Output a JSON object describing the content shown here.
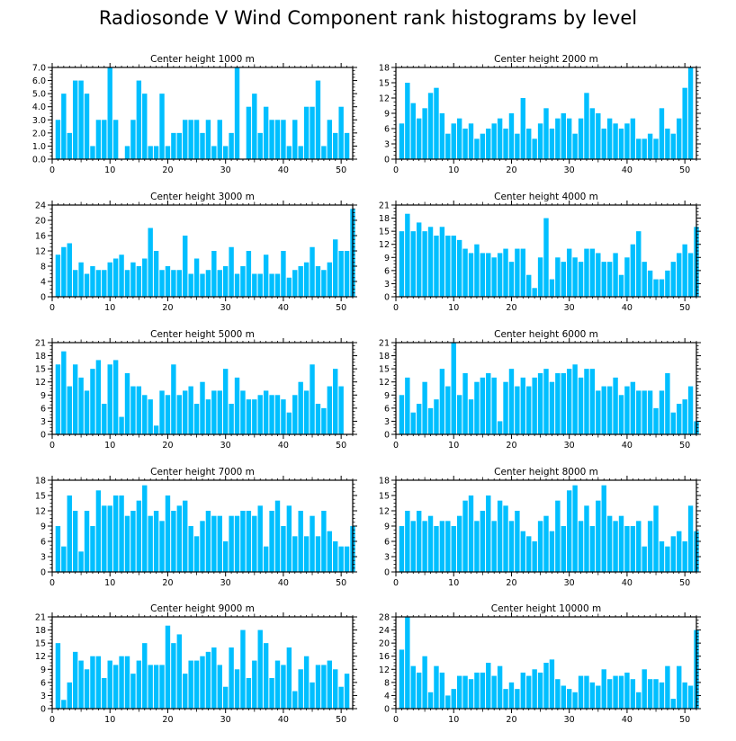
{
  "title": "Radiosonde V Wind Component rank histograms by level",
  "colors": {
    "bar": "#00bfff",
    "axis": "#000000"
  },
  "chart_data": [
    {
      "type": "bar",
      "title": "Center height 1000 m",
      "ylim": [
        0,
        7
      ],
      "yticks": [
        "0.0",
        "1.0",
        "2.0",
        "3.0",
        "4.0",
        "5.0",
        "6.0",
        "7.0"
      ],
      "xlim": [
        0,
        52
      ],
      "xticks": [
        0,
        10,
        20,
        30,
        40,
        50
      ],
      "values": [
        3,
        5,
        2,
        6,
        6,
        5,
        1,
        3,
        3,
        7,
        3,
        0,
        1,
        3,
        6,
        5,
        1,
        1,
        5,
        1,
        2,
        2,
        3,
        3,
        3,
        2,
        3,
        1,
        3,
        1,
        2,
        7,
        0,
        4,
        5,
        2,
        4,
        3,
        3,
        3,
        1,
        3,
        1,
        4,
        4,
        6,
        1,
        3,
        2,
        4,
        2
      ]
    },
    {
      "type": "bar",
      "title": "Center height 2000 m",
      "ylim": [
        0,
        18
      ],
      "yticks": [
        "0",
        "3",
        "6",
        "9",
        "12",
        "15",
        "18"
      ],
      "xlim": [
        0,
        52
      ],
      "xticks": [
        0,
        10,
        20,
        30,
        40,
        50
      ],
      "values": [
        7,
        15,
        11,
        8,
        10,
        13,
        14,
        9,
        5,
        7,
        8,
        6,
        7,
        4,
        5,
        6,
        7,
        8,
        6,
        9,
        5,
        12,
        6,
        4,
        7,
        10,
        6,
        8,
        9,
        8,
        5,
        8,
        13,
        10,
        9,
        6,
        8,
        7,
        6,
        7,
        8,
        4,
        4,
        5,
        4,
        10,
        6,
        5,
        8,
        14,
        18
      ]
    },
    {
      "type": "bar",
      "title": "Center height 3000 m",
      "ylim": [
        0,
        24
      ],
      "yticks": [
        "0",
        "4",
        "8",
        "12",
        "16",
        "20",
        "24"
      ],
      "xlim": [
        0,
        52
      ],
      "xticks": [
        0,
        10,
        20,
        30,
        40,
        50
      ],
      "values": [
        11,
        13,
        14,
        7,
        9,
        6,
        8,
        7,
        7,
        9,
        10,
        11,
        7,
        9,
        8,
        10,
        18,
        12,
        7,
        8,
        7,
        7,
        16,
        6,
        10,
        6,
        7,
        12,
        7,
        8,
        13,
        6,
        8,
        12,
        6,
        6,
        11,
        6,
        6,
        12,
        5,
        7,
        8,
        9,
        13,
        8,
        7,
        9,
        15,
        12,
        12,
        23
      ]
    },
    {
      "type": "bar",
      "title": "Center height 4000 m",
      "ylim": [
        0,
        21
      ],
      "yticks": [
        "0",
        "3",
        "6",
        "9",
        "12",
        "15",
        "18",
        "21"
      ],
      "xlim": [
        0,
        52
      ],
      "xticks": [
        0,
        10,
        20,
        30,
        40,
        50
      ],
      "values": [
        15,
        19,
        15,
        17,
        15,
        16,
        14,
        16,
        14,
        14,
        13,
        11,
        10,
        12,
        10,
        10,
        9,
        10,
        11,
        8,
        11,
        11,
        5,
        2,
        9,
        18,
        4,
        9,
        8,
        11,
        9,
        8,
        11,
        11,
        10,
        8,
        8,
        10,
        5,
        9,
        12,
        15,
        8,
        6,
        4,
        4,
        6,
        8,
        10,
        12,
        10,
        16
      ]
    },
    {
      "type": "bar",
      "title": "Center height 5000 m",
      "ylim": [
        0,
        21
      ],
      "yticks": [
        "0",
        "3",
        "6",
        "9",
        "12",
        "15",
        "18",
        "21"
      ],
      "xlim": [
        0,
        52
      ],
      "xticks": [
        0,
        10,
        20,
        30,
        40,
        50
      ],
      "values": [
        16,
        19,
        11,
        16,
        13,
        10,
        15,
        17,
        7,
        16,
        17,
        4,
        14,
        11,
        11,
        9,
        8,
        2,
        10,
        9,
        16,
        9,
        10,
        11,
        7,
        12,
        8,
        10,
        10,
        15,
        7,
        13,
        10,
        8,
        8,
        9,
        10,
        9,
        9,
        8,
        5,
        9,
        12,
        10,
        16,
        7,
        6,
        11,
        15,
        11
      ]
    },
    {
      "type": "bar",
      "title": "Center height 6000 m",
      "ylim": [
        0,
        21
      ],
      "yticks": [
        "0",
        "3",
        "6",
        "9",
        "12",
        "15",
        "18",
        "21"
      ],
      "xlim": [
        0,
        52
      ],
      "xticks": [
        0,
        10,
        20,
        30,
        40,
        50
      ],
      "values": [
        9,
        13,
        5,
        7,
        12,
        6,
        8,
        15,
        11,
        21,
        9,
        14,
        8,
        12,
        13,
        14,
        13,
        3,
        12,
        15,
        11,
        13,
        11,
        13,
        14,
        15,
        12,
        14,
        14,
        15,
        16,
        13,
        15,
        15,
        10,
        11,
        11,
        13,
        9,
        11,
        12,
        10,
        10,
        10,
        6,
        10,
        14,
        5,
        7,
        8,
        11,
        3
      ]
    },
    {
      "type": "bar",
      "title": "Center height 7000 m",
      "ylim": [
        0,
        18
      ],
      "yticks": [
        "0",
        "3",
        "6",
        "9",
        "12",
        "15",
        "18"
      ],
      "xlim": [
        0,
        52
      ],
      "xticks": [
        0,
        10,
        20,
        30,
        40,
        50
      ],
      "values": [
        9,
        5,
        15,
        12,
        4,
        12,
        9,
        16,
        13,
        13,
        15,
        15,
        11,
        12,
        14,
        17,
        11,
        12,
        10,
        15,
        12,
        13,
        14,
        9,
        7,
        10,
        12,
        11,
        11,
        6,
        11,
        11,
        12,
        12,
        11,
        13,
        5,
        12,
        14,
        9,
        13,
        7,
        12,
        7,
        11,
        7,
        12,
        8,
        6,
        5,
        5,
        9
      ]
    },
    {
      "type": "bar",
      "title": "Center height 8000 m",
      "ylim": [
        0,
        18
      ],
      "yticks": [
        "0",
        "3",
        "6",
        "9",
        "12",
        "15",
        "18"
      ],
      "xlim": [
        0,
        52
      ],
      "xticks": [
        0,
        10,
        20,
        30,
        40,
        50
      ],
      "values": [
        9,
        12,
        10,
        12,
        10,
        11,
        9,
        10,
        10,
        9,
        11,
        14,
        15,
        10,
        12,
        15,
        10,
        14,
        13,
        10,
        12,
        8,
        7,
        6,
        10,
        11,
        8,
        14,
        9,
        16,
        17,
        10,
        13,
        9,
        14,
        17,
        11,
        10,
        11,
        9,
        9,
        10,
        5,
        10,
        13,
        6,
        5,
        7,
        8,
        6,
        13,
        8
      ]
    },
    {
      "type": "bar",
      "title": "Center height 9000 m",
      "ylim": [
        0,
        21
      ],
      "yticks": [
        "0",
        "3",
        "6",
        "9",
        "12",
        "15",
        "18",
        "21"
      ],
      "xlim": [
        0,
        52
      ],
      "xticks": [
        0,
        10,
        20,
        30,
        40,
        50
      ],
      "values": [
        15,
        2,
        6,
        13,
        11,
        9,
        12,
        12,
        7,
        11,
        10,
        12,
        12,
        8,
        11,
        15,
        10,
        10,
        10,
        19,
        15,
        17,
        8,
        11,
        11,
        12,
        13,
        14,
        10,
        5,
        14,
        9,
        18,
        7,
        11,
        18,
        15,
        7,
        11,
        10,
        14,
        4,
        9,
        12,
        6,
        10,
        10,
        11,
        9,
        5,
        8
      ]
    },
    {
      "type": "bar",
      "title": "Center height 10000 m",
      "ylim": [
        0,
        28
      ],
      "yticks": [
        "0",
        "4",
        "8",
        "12",
        "16",
        "20",
        "24",
        "28"
      ],
      "xlim": [
        0,
        52
      ],
      "xticks": [
        0,
        10,
        20,
        30,
        40,
        50
      ],
      "values": [
        18,
        28,
        13,
        11,
        16,
        5,
        13,
        11,
        4,
        6,
        10,
        10,
        9,
        11,
        11,
        14,
        10,
        13,
        6,
        8,
        6,
        11,
        10,
        12,
        11,
        14,
        15,
        9,
        7,
        6,
        5,
        10,
        10,
        8,
        7,
        12,
        9,
        10,
        10,
        11,
        9,
        5,
        12,
        9,
        9,
        8,
        13,
        3,
        13,
        8,
        7,
        24
      ]
    }
  ]
}
